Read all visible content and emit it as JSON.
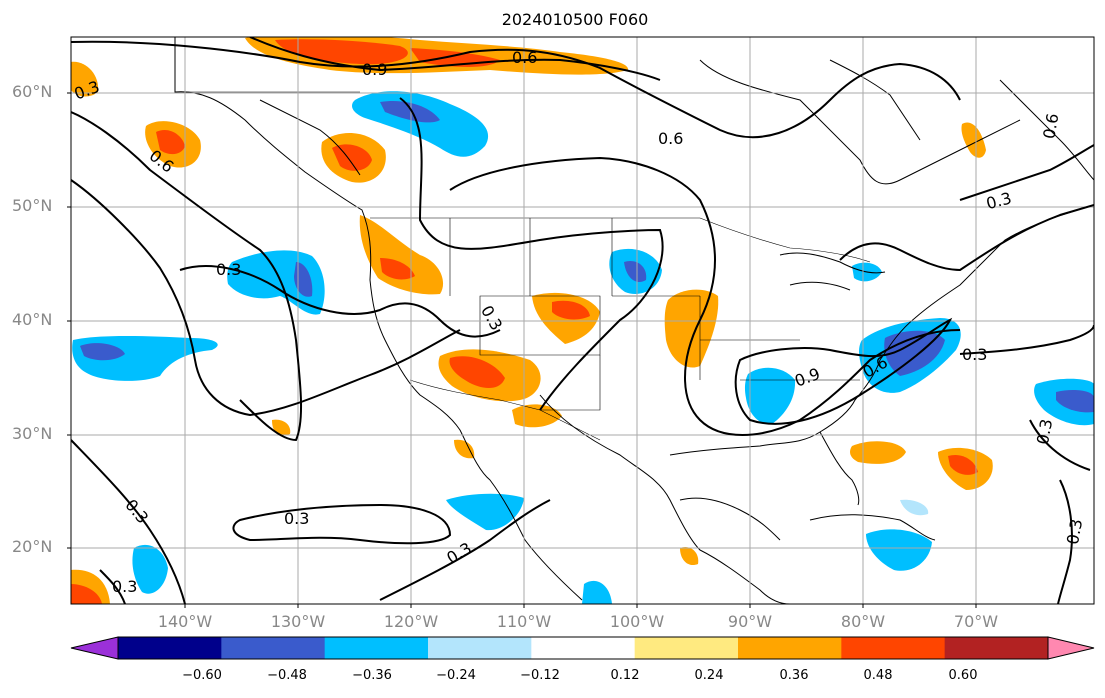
{
  "title": "2024010500 F060",
  "lat_labels": [
    "60°N",
    "50°N",
    "40°N",
    "30°N",
    "20°N"
  ],
  "lon_labels": [
    "140°W",
    "130°W",
    "120°W",
    "110°W",
    "100°W",
    "90°W",
    "80°W",
    "70°W"
  ],
  "contour_labels": [
    "0.9",
    "0.6",
    "0.6",
    "0.6",
    "0.3",
    "0.3",
    "0.3",
    "0.3",
    "0.3",
    "0.9",
    "0.6",
    "0.3",
    "0.3",
    "0.3",
    "0.3",
    "0.3",
    "0.6",
    "0.3"
  ],
  "colorbar": {
    "ticks": [
      "−0.60",
      "−0.48",
      "−0.36",
      "−0.24",
      "−0.12",
      "0.12",
      "0.24",
      "0.36",
      "0.48",
      "0.60"
    ],
    "colors": [
      "#9b30d9",
      "#00008b",
      "#3a5bcc",
      "#00bfff",
      "#b3e5fc",
      "#ffffff",
      "#ffea80",
      "#ffa500",
      "#ff4500",
      "#b22222",
      "#ff88b0"
    ],
    "levels": [
      -0.6,
      -0.48,
      -0.36,
      -0.24,
      -0.12,
      0.12,
      0.24,
      0.36,
      0.48,
      0.6
    ]
  }
}
